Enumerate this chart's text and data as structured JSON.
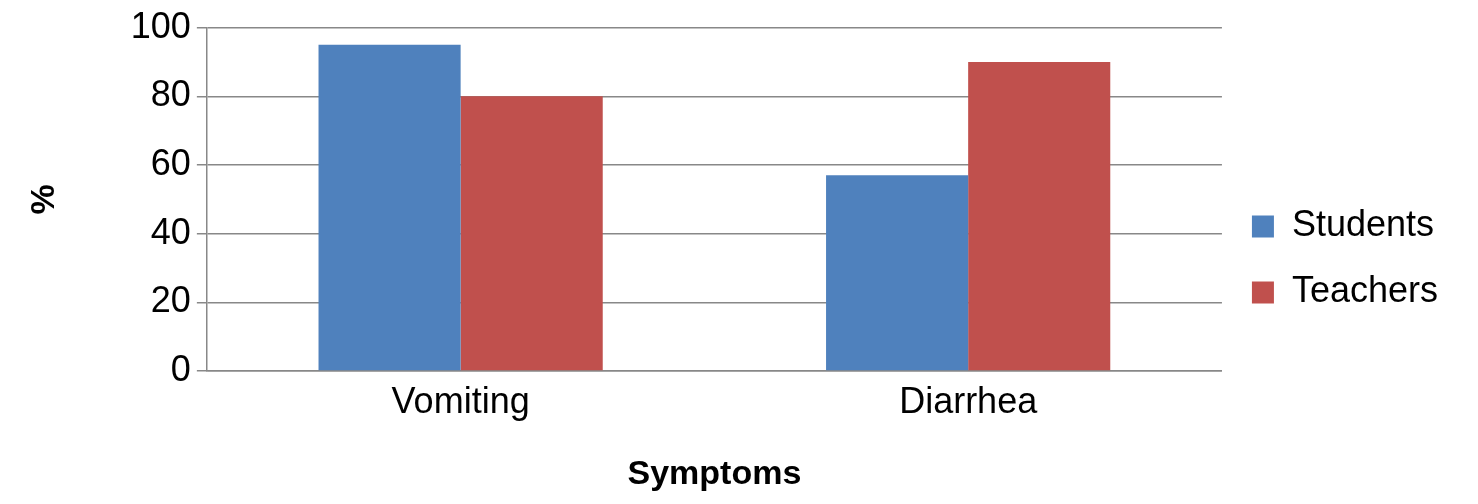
{
  "chart_data": {
    "type": "bar",
    "xlabel": "Symptoms",
    "ylabel": "%",
    "categories": [
      "Vomiting",
      "Diarrhea"
    ],
    "series": [
      {
        "name": "Students",
        "color": "#4f81bd",
        "values": [
          95,
          57
        ]
      },
      {
        "name": "Teachers",
        "color": "#c0504d",
        "values": [
          80,
          90
        ]
      }
    ],
    "ylim": [
      0,
      100
    ],
    "yticks": [
      0,
      20,
      40,
      60,
      80,
      100
    ],
    "grid": "y",
    "legend": "right"
  }
}
